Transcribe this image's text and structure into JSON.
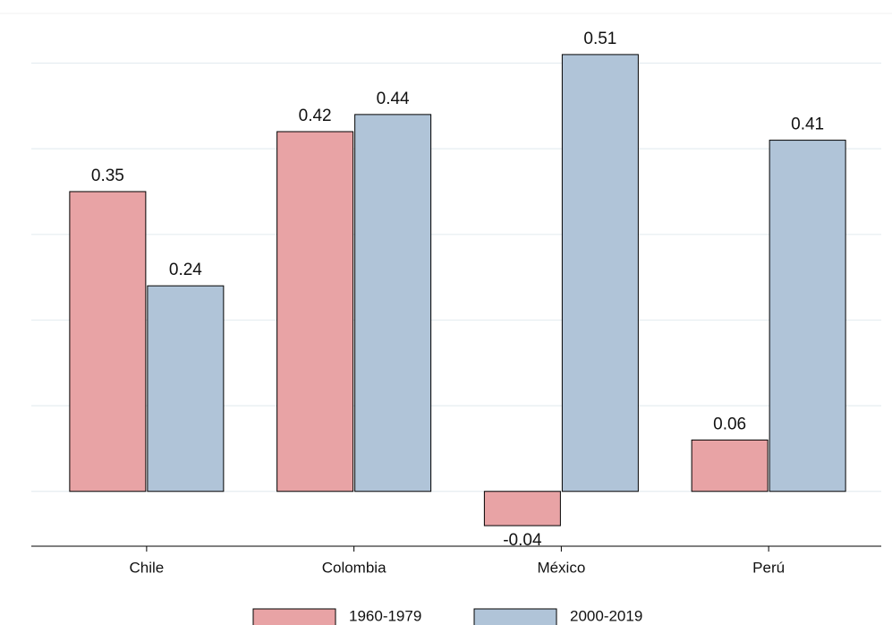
{
  "chart_data": {
    "type": "bar",
    "categories": [
      "Chile",
      "Colombia",
      "México",
      "Perú"
    ],
    "series": [
      {
        "name": "1960-1979",
        "color": "#e8a3a5",
        "values": [
          0.35,
          0.42,
          -0.04,
          0.06
        ]
      },
      {
        "name": "2000-2019",
        "color": "#b0c4d8",
        "values": [
          0.24,
          0.44,
          0.51,
          0.41
        ]
      }
    ],
    "ylim": [
      -0.064,
      0.558
    ],
    "yticks": [
      0,
      0.1,
      0.2,
      0.3,
      0.4,
      0.5
    ],
    "grid": true,
    "ytick_labels": false,
    "legend": "bottom"
  }
}
